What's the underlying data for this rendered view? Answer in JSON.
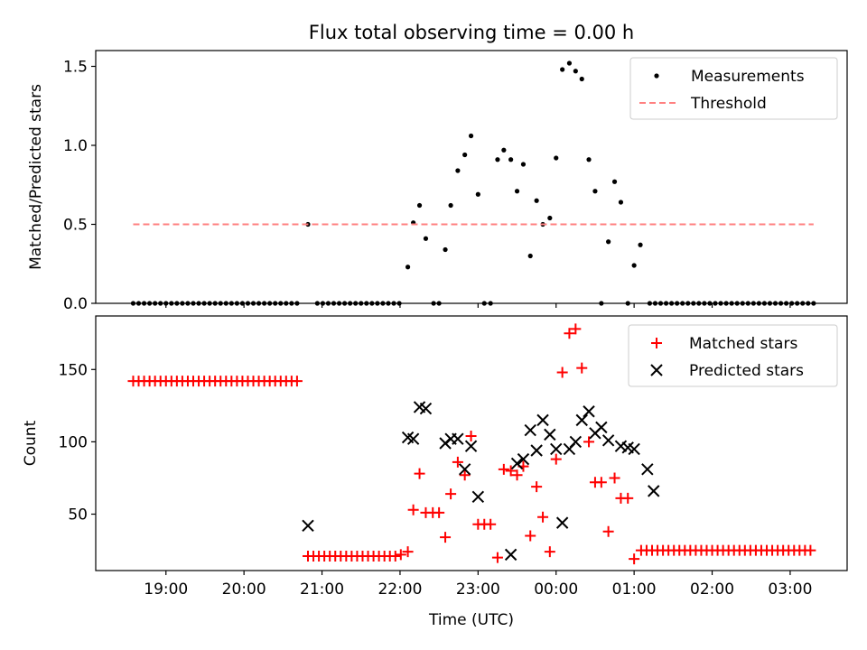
{
  "title": "Flux total observing time = 0.00 h",
  "chart_data": [
    {
      "type": "scatter",
      "panel": "top",
      "title": "Flux total observing time = 0.00 h",
      "ylabel": "Matched/Predicted stars",
      "xlabel": "",
      "x_unit": "hours since 00:00 UTC",
      "xlim": [
        -5.9,
        3.73
      ],
      "ylim": [
        0,
        1.6
      ],
      "yticks": [
        0.0,
        0.5,
        1.0,
        1.5
      ],
      "ytick_labels": [
        "0.0",
        "0.5",
        "1.0",
        "1.5"
      ],
      "grid": false,
      "legend_position": "top-right",
      "legend": [
        "Measurements",
        "Threshold"
      ],
      "series": [
        {
          "name": "Measurements",
          "color": "#000000",
          "marker": "dot",
          "points": [
            [
              -5.42,
              0
            ],
            [
              -5.35,
              0
            ],
            [
              -5.28,
              0
            ],
            [
              -5.21,
              0
            ],
            [
              -5.14,
              0
            ],
            [
              -5.07,
              0
            ],
            [
              -5.0,
              0
            ],
            [
              -4.93,
              0
            ],
            [
              -4.86,
              0
            ],
            [
              -4.79,
              0
            ],
            [
              -4.72,
              0
            ],
            [
              -4.65,
              0
            ],
            [
              -4.58,
              0
            ],
            [
              -4.51,
              0
            ],
            [
              -4.44,
              0
            ],
            [
              -4.37,
              0
            ],
            [
              -4.3,
              0
            ],
            [
              -4.23,
              0
            ],
            [
              -4.16,
              0
            ],
            [
              -4.09,
              0
            ],
            [
              -4.02,
              0
            ],
            [
              -3.95,
              0
            ],
            [
              -3.88,
              0
            ],
            [
              -3.81,
              0
            ],
            [
              -3.74,
              0
            ],
            [
              -3.67,
              0
            ],
            [
              -3.6,
              0
            ],
            [
              -3.53,
              0
            ],
            [
              -3.46,
              0
            ],
            [
              -3.39,
              0
            ],
            [
              -3.32,
              0
            ],
            [
              -3.18,
              0.5
            ],
            [
              -3.06,
              0
            ],
            [
              -2.99,
              0
            ],
            [
              -2.92,
              0
            ],
            [
              -2.85,
              0
            ],
            [
              -2.78,
              0
            ],
            [
              -2.71,
              0
            ],
            [
              -2.64,
              0
            ],
            [
              -2.57,
              0
            ],
            [
              -2.5,
              0
            ],
            [
              -2.43,
              0
            ],
            [
              -2.36,
              0
            ],
            [
              -2.29,
              0
            ],
            [
              -2.22,
              0
            ],
            [
              -2.15,
              0
            ],
            [
              -2.08,
              0
            ],
            [
              -2.01,
              0
            ],
            [
              -1.9,
              0.23
            ],
            [
              -1.83,
              0.51
            ],
            [
              -1.75,
              0.62
            ],
            [
              -1.67,
              0.41
            ],
            [
              -1.57,
              0
            ],
            [
              -1.5,
              0
            ],
            [
              -1.42,
              0.34
            ],
            [
              -1.35,
              0.62
            ],
            [
              -1.26,
              0.84
            ],
            [
              -1.17,
              0.94
            ],
            [
              -1.09,
              1.06
            ],
            [
              -1.0,
              0.69
            ],
            [
              -0.92,
              0
            ],
            [
              -0.84,
              0
            ],
            [
              -0.75,
              0.91
            ],
            [
              -0.67,
              0.97
            ],
            [
              -0.58,
              0.91
            ],
            [
              -0.5,
              0.71
            ],
            [
              -0.42,
              0.88
            ],
            [
              -0.33,
              0.3
            ],
            [
              -0.25,
              0.65
            ],
            [
              -0.17,
              0.5
            ],
            [
              -0.08,
              0.54
            ],
            [
              0.0,
              0.92
            ],
            [
              0.08,
              1.48
            ],
            [
              0.17,
              1.52
            ],
            [
              0.25,
              1.47
            ],
            [
              0.33,
              1.42
            ],
            [
              0.42,
              0.91
            ],
            [
              0.5,
              0.71
            ],
            [
              0.58,
              0
            ],
            [
              0.67,
              0.39
            ],
            [
              0.75,
              0.77
            ],
            [
              0.83,
              0.64
            ],
            [
              0.92,
              0
            ],
            [
              1.0,
              0.24
            ],
            [
              1.08,
              0.37
            ],
            [
              1.2,
              0
            ],
            [
              1.27,
              0
            ],
            [
              1.34,
              0
            ],
            [
              1.41,
              0
            ],
            [
              1.48,
              0
            ],
            [
              1.55,
              0
            ],
            [
              1.62,
              0
            ],
            [
              1.69,
              0
            ],
            [
              1.76,
              0
            ],
            [
              1.83,
              0
            ],
            [
              1.9,
              0
            ],
            [
              1.97,
              0
            ],
            [
              2.04,
              0
            ],
            [
              2.11,
              0
            ],
            [
              2.18,
              0
            ],
            [
              2.25,
              0
            ],
            [
              2.32,
              0
            ],
            [
              2.39,
              0
            ],
            [
              2.46,
              0
            ],
            [
              2.53,
              0
            ],
            [
              2.6,
              0
            ],
            [
              2.67,
              0
            ],
            [
              2.74,
              0
            ],
            [
              2.81,
              0
            ],
            [
              2.88,
              0
            ],
            [
              2.95,
              0
            ],
            [
              3.02,
              0
            ],
            [
              3.09,
              0
            ],
            [
              3.16,
              0
            ],
            [
              3.23,
              0
            ],
            [
              3.3,
              0
            ]
          ]
        },
        {
          "name": "Threshold",
          "color": "#ff8080",
          "style": "dashed",
          "points": [
            [
              -5.42,
              0.5
            ],
            [
              3.3,
              0.5
            ]
          ]
        }
      ]
    },
    {
      "type": "scatter",
      "panel": "bottom",
      "ylabel": "Count",
      "xlabel": "Time (UTC)",
      "x_unit": "hours since 00:00 UTC",
      "xlim": [
        -5.9,
        3.73
      ],
      "ylim": [
        11,
        187
      ],
      "yticks": [
        50,
        100,
        150
      ],
      "ytick_labels": [
        "50",
        "100",
        "150"
      ],
      "xticks": [
        -5,
        -4,
        -3,
        -2,
        -1,
        0,
        1,
        2,
        3
      ],
      "xtick_labels": [
        "19:00",
        "20:00",
        "21:00",
        "22:00",
        "23:00",
        "00:00",
        "01:00",
        "02:00",
        "03:00"
      ],
      "grid": false,
      "legend_position": "top-right",
      "legend": [
        "Matched stars",
        "Predicted stars"
      ],
      "series": [
        {
          "name": "Matched stars",
          "color": "#ff0000",
          "marker": "plus",
          "points": [
            [
              -5.42,
              142
            ],
            [
              -5.35,
              142
            ],
            [
              -5.28,
              142
            ],
            [
              -5.21,
              142
            ],
            [
              -5.14,
              142
            ],
            [
              -5.07,
              142
            ],
            [
              -5.0,
              142
            ],
            [
              -4.93,
              142
            ],
            [
              -4.86,
              142
            ],
            [
              -4.79,
              142
            ],
            [
              -4.72,
              142
            ],
            [
              -4.65,
              142
            ],
            [
              -4.58,
              142
            ],
            [
              -4.51,
              142
            ],
            [
              -4.44,
              142
            ],
            [
              -4.37,
              142
            ],
            [
              -4.3,
              142
            ],
            [
              -4.23,
              142
            ],
            [
              -4.16,
              142
            ],
            [
              -4.09,
              142
            ],
            [
              -4.02,
              142
            ],
            [
              -3.95,
              142
            ],
            [
              -3.88,
              142
            ],
            [
              -3.81,
              142
            ],
            [
              -3.74,
              142
            ],
            [
              -3.67,
              142
            ],
            [
              -3.6,
              142
            ],
            [
              -3.53,
              142
            ],
            [
              -3.46,
              142
            ],
            [
              -3.39,
              142
            ],
            [
              -3.32,
              142
            ],
            [
              -3.18,
              21
            ],
            [
              -3.11,
              21
            ],
            [
              -3.04,
              21
            ],
            [
              -2.97,
              21
            ],
            [
              -2.9,
              21
            ],
            [
              -2.83,
              21
            ],
            [
              -2.76,
              21
            ],
            [
              -2.69,
              21
            ],
            [
              -2.62,
              21
            ],
            [
              -2.55,
              21
            ],
            [
              -2.48,
              21
            ],
            [
              -2.41,
              21
            ],
            [
              -2.34,
              21
            ],
            [
              -2.27,
              21
            ],
            [
              -2.2,
              21
            ],
            [
              -2.13,
              21
            ],
            [
              -2.06,
              21
            ],
            [
              -1.99,
              22
            ],
            [
              -1.9,
              24
            ],
            [
              -1.83,
              53
            ],
            [
              -1.75,
              78
            ],
            [
              -1.67,
              51
            ],
            [
              -1.58,
              51
            ],
            [
              -1.5,
              51
            ],
            [
              -1.42,
              34
            ],
            [
              -1.35,
              64
            ],
            [
              -1.26,
              86
            ],
            [
              -1.17,
              77
            ],
            [
              -1.09,
              104
            ],
            [
              -1.0,
              43
            ],
            [
              -0.92,
              43
            ],
            [
              -0.84,
              43
            ],
            [
              -0.75,
              20
            ],
            [
              -0.67,
              81
            ],
            [
              -0.58,
              80
            ],
            [
              -0.5,
              77
            ],
            [
              -0.42,
              83
            ],
            [
              -0.33,
              35
            ],
            [
              -0.25,
              69
            ],
            [
              -0.17,
              48
            ],
            [
              -0.08,
              24
            ],
            [
              0.0,
              88
            ],
            [
              0.08,
              148
            ],
            [
              0.17,
              175
            ],
            [
              0.25,
              178
            ],
            [
              0.33,
              151
            ],
            [
              0.42,
              100
            ],
            [
              0.5,
              72
            ],
            [
              0.58,
              72
            ],
            [
              0.67,
              38
            ],
            [
              0.75,
              75
            ],
            [
              0.83,
              61
            ],
            [
              0.92,
              61
            ],
            [
              1.0,
              19
            ],
            [
              1.09,
              25
            ],
            [
              1.16,
              25
            ],
            [
              1.23,
              25
            ],
            [
              1.3,
              25
            ],
            [
              1.37,
              25
            ],
            [
              1.44,
              25
            ],
            [
              1.51,
              25
            ],
            [
              1.58,
              25
            ],
            [
              1.65,
              25
            ],
            [
              1.72,
              25
            ],
            [
              1.79,
              25
            ],
            [
              1.86,
              25
            ],
            [
              1.93,
              25
            ],
            [
              2.0,
              25
            ],
            [
              2.07,
              25
            ],
            [
              2.14,
              25
            ],
            [
              2.21,
              25
            ],
            [
              2.28,
              25
            ],
            [
              2.35,
              25
            ],
            [
              2.42,
              25
            ],
            [
              2.49,
              25
            ],
            [
              2.56,
              25
            ],
            [
              2.63,
              25
            ],
            [
              2.7,
              25
            ],
            [
              2.77,
              25
            ],
            [
              2.84,
              25
            ],
            [
              2.91,
              25
            ],
            [
              2.98,
              25
            ],
            [
              3.05,
              25
            ],
            [
              3.12,
              25
            ],
            [
              3.19,
              25
            ],
            [
              3.26,
              25
            ]
          ]
        },
        {
          "name": "Predicted stars",
          "color": "#000000",
          "marker": "x",
          "points": [
            [
              -3.18,
              42
            ],
            [
              -1.9,
              103
            ],
            [
              -1.83,
              102
            ],
            [
              -1.75,
              124
            ],
            [
              -1.67,
              123
            ],
            [
              -1.42,
              99
            ],
            [
              -1.35,
              102
            ],
            [
              -1.26,
              102
            ],
            [
              -1.17,
              81
            ],
            [
              -1.09,
              97
            ],
            [
              -1.0,
              62
            ],
            [
              -0.58,
              22
            ],
            [
              -0.5,
              85
            ],
            [
              -0.42,
              88
            ],
            [
              -0.33,
              108
            ],
            [
              -0.25,
              94
            ],
            [
              -0.17,
              115
            ],
            [
              -0.08,
              105
            ],
            [
              0.0,
              95
            ],
            [
              0.08,
              44
            ],
            [
              0.17,
              95
            ],
            [
              0.25,
              100
            ],
            [
              0.33,
              115
            ],
            [
              0.42,
              121
            ],
            [
              0.5,
              106
            ],
            [
              0.58,
              110
            ],
            [
              0.67,
              101
            ],
            [
              0.83,
              97
            ],
            [
              0.92,
              96
            ],
            [
              1.0,
              95
            ],
            [
              1.17,
              81
            ],
            [
              1.25,
              66
            ]
          ]
        }
      ]
    }
  ]
}
